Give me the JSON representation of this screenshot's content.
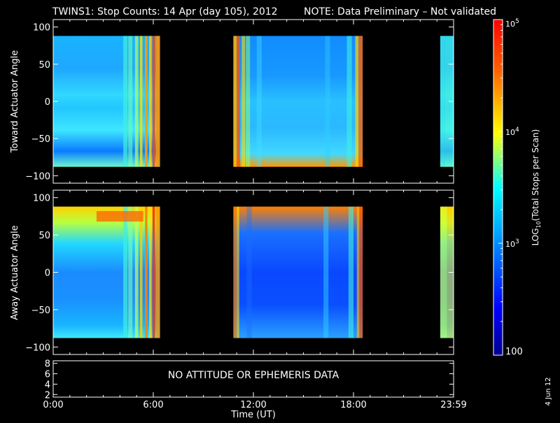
{
  "title": "TWINS1: Stop Counts: 14 Apr (day 105), 2012",
  "note": "NOTE: Data Preliminary – Not validated",
  "note_color": "#ff2020",
  "footer_date": "4 Jun 12",
  "colorbar": {
    "label": "LOG10(Total Stops per Scan)",
    "label_prefix": "LOG",
    "label_sub": "10",
    "label_suffix": "(Total Stops per Scan)",
    "ticks": [
      {
        "value": 100,
        "label": "100"
      },
      {
        "value": 1000,
        "label": "10^3",
        "base": "10",
        "exp": "3"
      },
      {
        "value": 10000,
        "label": "10^4",
        "base": "10",
        "exp": "4"
      },
      {
        "value": 100000,
        "label": "10^5",
        "base": "10",
        "exp": "5"
      }
    ],
    "range": [
      100,
      100000
    ],
    "scale": "log",
    "colormap": "rainbow"
  },
  "chart_data": [
    {
      "type": "heatmap",
      "ylabel": "Toward Actuator Angle",
      "ylim": [
        -110,
        110
      ],
      "yticks": [
        100,
        50,
        0,
        -50,
        -100
      ],
      "xlim": [
        0,
        24
      ],
      "data_y_range": [
        -88,
        88
      ],
      "data_blocks_hours": [
        [
          0,
          6.4
        ],
        [
          10.8,
          18.55
        ],
        [
          23.2,
          24
        ]
      ],
      "values_note": "log10 counts, ~2.7 (blue) to ~5 (red)"
    },
    {
      "type": "heatmap",
      "ylabel": "Away Actuator Angle",
      "ylim": [
        -110,
        110
      ],
      "yticks": [
        100,
        50,
        0,
        -50,
        -100
      ],
      "xlim": [
        0,
        24
      ],
      "data_y_range": [
        -88,
        88
      ],
      "data_blocks_hours": [
        [
          0,
          6.4
        ],
        [
          10.8,
          18.55
        ],
        [
          23.2,
          24
        ]
      ],
      "values_note": "log10 counts, ~2.3 (blue) to ~5 (red)"
    },
    {
      "type": "line",
      "yticks": [
        8,
        6,
        4,
        2
      ],
      "ylim": [
        1.5,
        8.5
      ],
      "annotation": "NO ATTITUDE OR EPHEMERIS DATA",
      "xlabel": "Time (UT)",
      "xticks": [
        "0:00",
        "6:00",
        "12:00",
        "18:00",
        "23:59"
      ],
      "xtick_hours": [
        0,
        6,
        12,
        18,
        24
      ]
    }
  ]
}
